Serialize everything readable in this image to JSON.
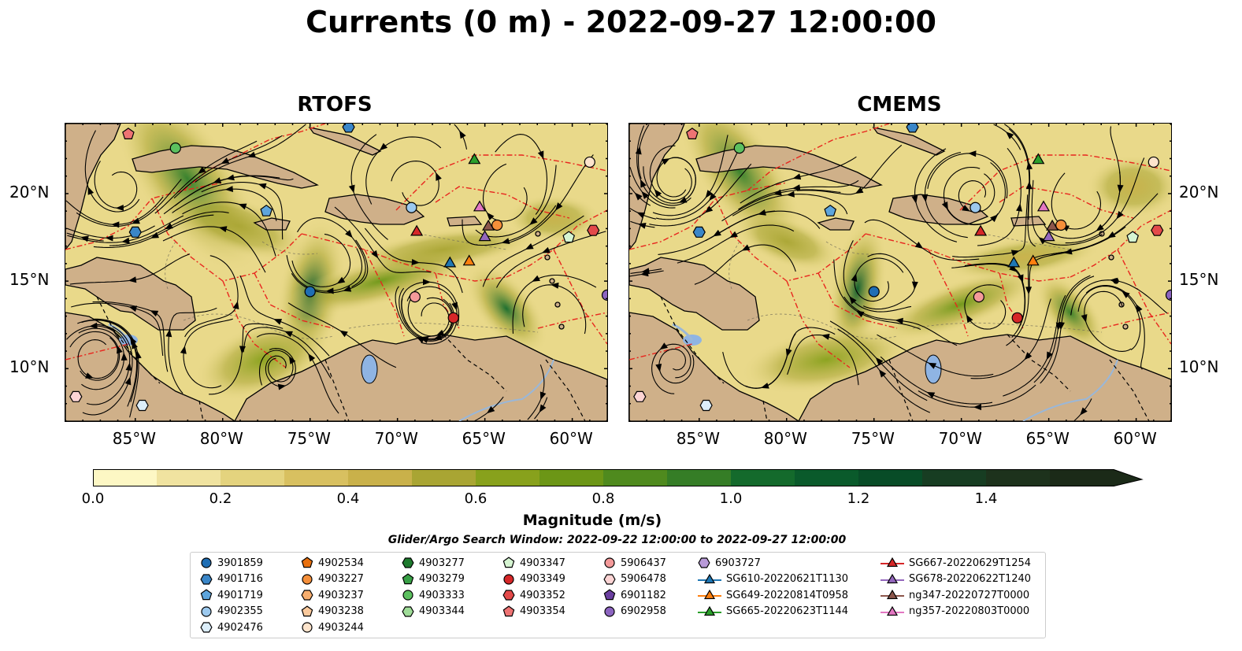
{
  "title": "Currents (0 m) - 2022-09-27 12:00:00",
  "panels": [
    {
      "title": "RTOFS",
      "lat_labels_side": "left"
    },
    {
      "title": "CMEMS",
      "lat_labels_side": "right"
    }
  ],
  "map": {
    "lon_range": [
      -89,
      -58
    ],
    "lat_range": [
      7,
      24
    ],
    "lon_ticks": [
      "85°W",
      "80°W",
      "75°W",
      "70°W",
      "65°W",
      "60°W"
    ],
    "lat_ticks": [
      "10°N",
      "15°N",
      "20°N"
    ],
    "land_color": "#cfb089",
    "lake_color": "#8fb4e3",
    "eez_color": "#e8261e"
  },
  "colorbar": {
    "label": "Magnitude (m/s)",
    "ticks": [
      "0.0",
      "0.2",
      "0.4",
      "0.6",
      "0.8",
      "1.0",
      "1.2",
      "1.4"
    ],
    "range": [
      0,
      1.6
    ],
    "extend": "max",
    "colors": [
      "#fdf7c4",
      "#f0e3a0",
      "#e4d37e",
      "#d8c060",
      "#c9b14a",
      "#a9a533",
      "#88a11c",
      "#6c9616",
      "#4f8a1e",
      "#357d26",
      "#146a2c",
      "#0a5a2b",
      "#084c27",
      "#173d22",
      "#1d321c",
      "#1b2a18"
    ]
  },
  "search_window": "Glider/Argo Search Window: 2022-09-22 12:00:00 to 2022-09-27 12:00:00",
  "legend": {
    "columns": [
      [
        {
          "label": "3901859",
          "marker": "circle",
          "color": "#1f6eb4"
        },
        {
          "label": "4901716",
          "marker": "hexagon",
          "color": "#3a86c8"
        },
        {
          "label": "4901719",
          "marker": "pentagon",
          "color": "#5ea5dc"
        },
        {
          "label": "4902355",
          "marker": "circle",
          "color": "#9cc9ee"
        },
        {
          "label": "4902476",
          "marker": "hexagon",
          "color": "#dceefa"
        }
      ],
      [
        {
          "label": "4902534",
          "marker": "pentagon",
          "color": "#e8700e"
        },
        {
          "label": "4903227",
          "marker": "circle",
          "color": "#f58f3a"
        },
        {
          "label": "4903237",
          "marker": "hexagon",
          "color": "#f7ae6e"
        },
        {
          "label": "4903238",
          "marker": "pentagon",
          "color": "#fac99c"
        },
        {
          "label": "4903244",
          "marker": "circle",
          "color": "#fde4cc"
        }
      ],
      [
        {
          "label": "4903277",
          "marker": "hexagon",
          "color": "#1e7a2e"
        },
        {
          "label": "4903279",
          "marker": "pentagon",
          "color": "#38a046"
        },
        {
          "label": "4903333",
          "marker": "circle",
          "color": "#5cc05f"
        },
        {
          "label": "4903344",
          "marker": "hexagon",
          "color": "#9fdc98"
        }
      ],
      [
        {
          "label": "4903347",
          "marker": "pentagon",
          "color": "#d6f5d2"
        },
        {
          "label": "4903349",
          "marker": "circle",
          "color": "#d62728"
        },
        {
          "label": "4903352",
          "marker": "hexagon",
          "color": "#e34a4a"
        },
        {
          "label": "4903354",
          "marker": "pentagon",
          "color": "#ee7373"
        }
      ],
      [
        {
          "label": "5906437",
          "marker": "circle",
          "color": "#f49a9a"
        },
        {
          "label": "5906478",
          "marker": "hexagon",
          "color": "#fcd4d4"
        },
        {
          "label": "6901182",
          "marker": "pentagon",
          "color": "#6b3fa0"
        },
        {
          "label": "6902958",
          "marker": "circle",
          "color": "#8c64c0"
        }
      ],
      [
        {
          "label": "6903727",
          "marker": "hexagon",
          "color": "#b89ad8"
        },
        {
          "label": "SG610-20220621T1130",
          "marker": "triangle-line",
          "color": "#1f77b4"
        },
        {
          "label": "SG649-20220814T0958",
          "marker": "triangle-line",
          "color": "#ff7f0e"
        },
        {
          "label": "SG665-20220623T1144",
          "marker": "triangle-line",
          "color": "#2ca02c"
        }
      ],
      [
        {
          "label": "SG667-20220629T1254",
          "marker": "triangle-line",
          "color": "#d62728"
        },
        {
          "label": "SG678-20220622T1240",
          "marker": "triangle-line",
          "color": "#9467bd"
        },
        {
          "label": "ng347-20220727T0000",
          "marker": "triangle-line",
          "color": "#8c564b"
        },
        {
          "label": "ng357-20220803T0000",
          "marker": "triangle-line",
          "color": "#e377c2"
        }
      ]
    ]
  },
  "observations": [
    {
      "id": "3901859",
      "lon": -75.0,
      "lat": 14.4
    },
    {
      "id": "4901716",
      "lon": -72.8,
      "lat": 23.8
    },
    {
      "id": "4901719",
      "lon": -77.5,
      "lat": 19.0
    },
    {
      "id": "4902355",
      "lon": -69.2,
      "lat": 19.2
    },
    {
      "id": "4902476",
      "lon": -84.6,
      "lat": 7.9
    },
    {
      "id": "4903227",
      "lon": -64.3,
      "lat": 18.2
    },
    {
      "id": "4903244",
      "lon": -59.0,
      "lat": 21.8
    },
    {
      "id": "4903333",
      "lon": -82.7,
      "lat": 22.6
    },
    {
      "id": "4903347",
      "lon": -60.2,
      "lat": 17.5
    },
    {
      "id": "4903349",
      "lon": -66.8,
      "lat": 12.9
    },
    {
      "id": "4903354",
      "lon": -85.4,
      "lat": 23.4
    },
    {
      "id": "5906437",
      "lon": -69.0,
      "lat": 14.1
    },
    {
      "id": "5906478",
      "lon": -88.4,
      "lat": 8.4
    },
    {
      "id": "6902958",
      "lon": -58.0,
      "lat": 14.2
    },
    {
      "id": "4903352",
      "lon": -58.8,
      "lat": 17.9
    },
    {
      "id": "4901716b",
      "lon": -85.0,
      "lat": 17.8
    },
    {
      "id": "SG610-20220621T1130",
      "lon": -67.0,
      "lat": 16.0
    },
    {
      "id": "SG649-20220814T0958",
      "lon": -65.9,
      "lat": 16.1
    },
    {
      "id": "SG665-20220623T1144",
      "lon": -65.6,
      "lat": 21.9
    },
    {
      "id": "SG667-20220629T1254",
      "lon": -68.9,
      "lat": 17.8
    },
    {
      "id": "SG678-20220622T1240",
      "lon": -65.0,
      "lat": 17.5
    },
    {
      "id": "ng347-20220727T0000",
      "lon": -64.8,
      "lat": 18.1
    },
    {
      "id": "ng357-20220803T0000",
      "lon": -65.3,
      "lat": 19.2
    }
  ]
}
